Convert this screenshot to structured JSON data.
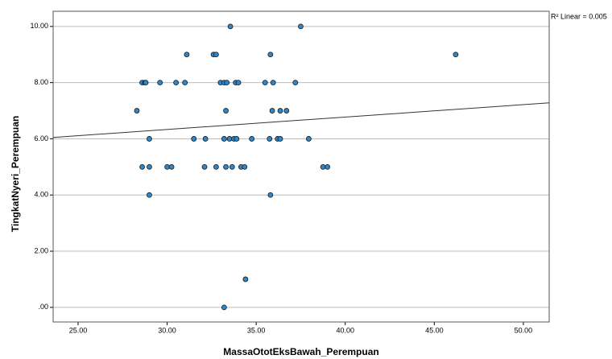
{
  "chart_data": {
    "type": "scatter",
    "x_label": "MassaOtotEksBawah_Perempuan",
    "y_label": "TingkatNyeri_Perempuan",
    "annotation": "R² Linear = 0.005",
    "x": [
      28.3,
      28.6,
      28.75,
      28.8,
      29.6,
      30.5,
      31.0,
      33.0,
      33.2,
      33.35,
      33.85,
      34.0,
      35.5,
      35.95,
      37.2,
      31.1,
      32.6,
      32.75,
      35.8,
      46.2,
      33.55,
      37.5,
      33.3,
      35.9,
      36.35,
      36.7,
      29.0,
      31.5,
      32.15,
      33.2,
      33.5,
      33.75,
      33.9,
      34.75,
      35.75,
      36.2,
      36.35,
      37.95,
      28.6,
      29.0,
      30.0,
      30.25,
      32.1,
      32.75,
      33.3,
      33.65,
      34.15,
      34.35,
      38.75,
      39.0,
      29.0,
      35.8,
      34.4,
      33.2
    ],
    "values": [
      7,
      8,
      8,
      8,
      8,
      8,
      8,
      8,
      8,
      8,
      8,
      8,
      8,
      8,
      8,
      9,
      9,
      9,
      9,
      9,
      10,
      10,
      7,
      7,
      7,
      7,
      6,
      6,
      6,
      6,
      6,
      6,
      6,
      6,
      6,
      6,
      6,
      6,
      5,
      5,
      5,
      5,
      5,
      5,
      5,
      5,
      5,
      5,
      5,
      5,
      4,
      4,
      1,
      0
    ],
    "color": "#2f86c8",
    "fit_line": {
      "x": [
        23.6,
        51.45
      ],
      "values": [
        6.05,
        7.28
      ],
      "color": "#333333"
    },
    "xlim": [
      23.6,
      51.45
    ],
    "ylim": [
      -0.52,
      10.54
    ],
    "xticks": [
      {
        "value": 25,
        "label": "25.00"
      },
      {
        "value": 30,
        "label": "30.00"
      },
      {
        "value": 35,
        "label": "35.00"
      },
      {
        "value": 40,
        "label": "40.00"
      },
      {
        "value": 45,
        "label": "45.00"
      },
      {
        "value": 50,
        "label": "50.00"
      }
    ],
    "yticks": [
      {
        "value": 0,
        "label": ".00"
      },
      {
        "value": 2,
        "label": "2.00"
      },
      {
        "value": 4,
        "label": "4.00"
      },
      {
        "value": 6,
        "label": "6.00"
      },
      {
        "value": 8,
        "label": "8.00"
      },
      {
        "value": 10,
        "label": "10.00"
      }
    ],
    "grid": true
  }
}
